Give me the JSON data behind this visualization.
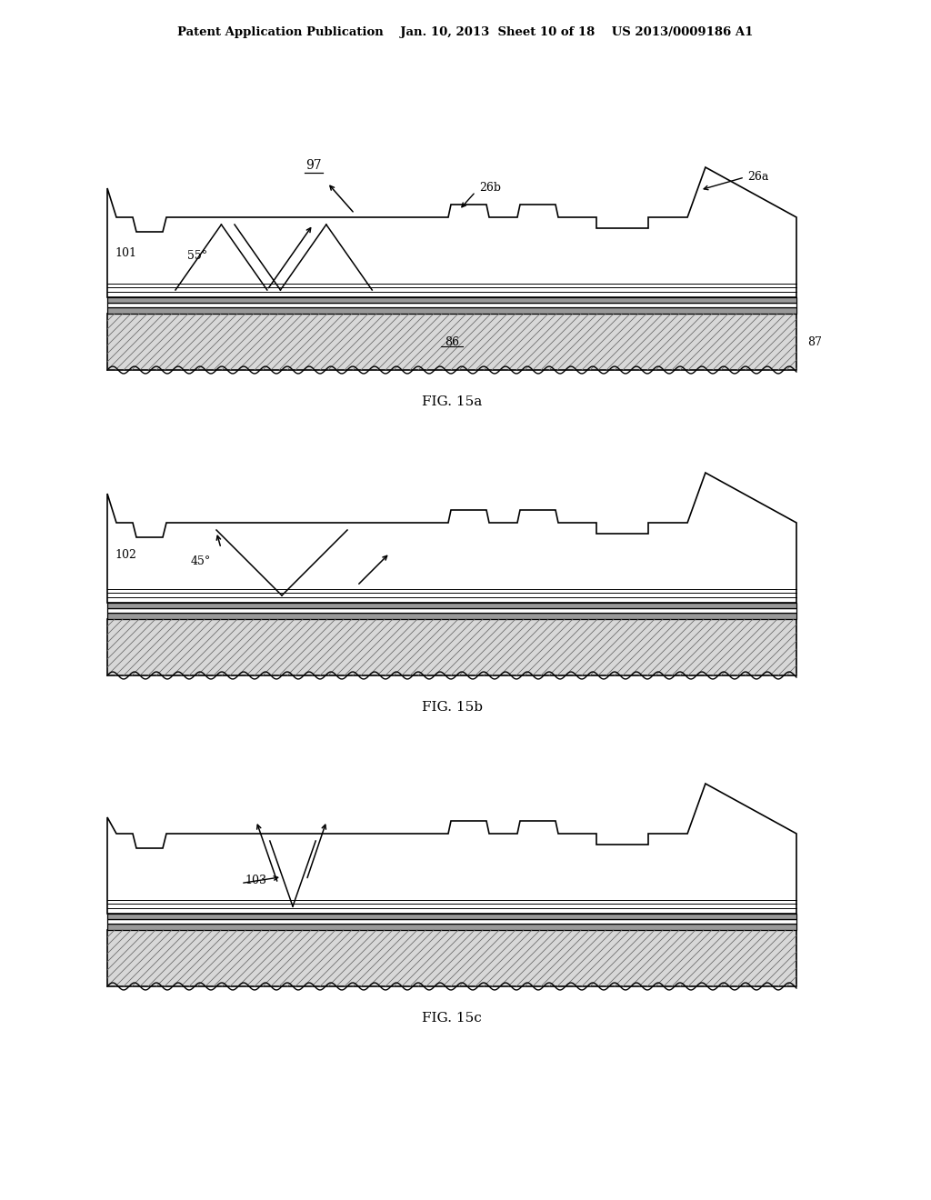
{
  "bg_color": "#ffffff",
  "header": "Patent Application Publication    Jan. 10, 2013  Sheet 10 of 18    US 2013/0009186 A1",
  "fig_a": {
    "label": "FIG. 15a",
    "ref": "97",
    "left_ref": "101",
    "angle": "55°",
    "ref_26a": "26a",
    "ref_26b": "26b",
    "ref_86": "86",
    "ref_87": "87"
  },
  "fig_b": {
    "label": "FIG. 15b",
    "left_ref": "102",
    "angle": "45°"
  },
  "fig_c": {
    "label": "FIG. 15c",
    "left_ref": "103"
  }
}
